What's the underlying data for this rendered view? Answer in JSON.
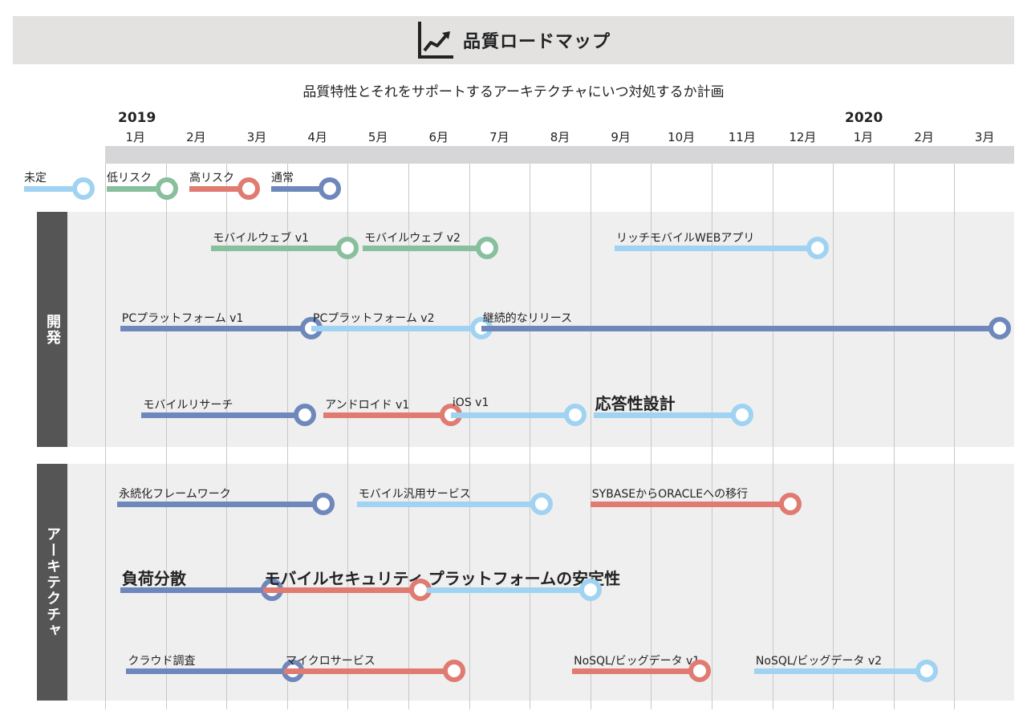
{
  "header": {
    "title": "品質ロードマップ",
    "subtitle": "品質特性とそれをサポートするアーキテクチャにいつ対処するか計画",
    "year_start": "2019",
    "year_end": "2020",
    "months": [
      "1月",
      "2月",
      "3月",
      "4月",
      "5月",
      "6月",
      "7月",
      "8月",
      "9月",
      "10月",
      "11月",
      "12月",
      "1月",
      "2月",
      "3月"
    ]
  },
  "colors": {
    "undecided": "#9fd3f1",
    "low_risk": "#88bf9d",
    "high_risk": "#e07b72",
    "normal": "#6f88bb"
  },
  "legend": [
    {
      "label": "未定",
      "status": "undecided"
    },
    {
      "label": "低リスク",
      "status": "low_risk"
    },
    {
      "label": "高リスク",
      "status": "high_risk"
    },
    {
      "label": "通常",
      "status": "normal"
    }
  ],
  "sections": [
    {
      "label": "開発"
    },
    {
      "label": "アーキテクチャ"
    }
  ],
  "items": [
    {
      "label": "モバイルウェブ v1",
      "status": "low_risk",
      "start": 2.75,
      "end": 5.0
    },
    {
      "label": "モバイルウェブ v2",
      "status": "low_risk",
      "start": 5.25,
      "end": 7.3
    },
    {
      "label": "リッチモバイルWEBアプリ",
      "status": "undecided",
      "start": 9.4,
      "end": 12.75
    },
    {
      "label": "PCプラットフォーム v1",
      "status": "normal",
      "start": 1.25,
      "end": 4.4
    },
    {
      "label": "PCプラットフォーム v2",
      "status": "undecided",
      "start": 4.4,
      "end": 7.2
    },
    {
      "label": "継続的なリリース",
      "status": "normal",
      "start": 7.2,
      "end": 15.75
    },
    {
      "label": "モバイルリサーチ",
      "status": "normal",
      "start": 1.6,
      "end": 4.3
    },
    {
      "label": "アンドロイド v1",
      "status": "high_risk",
      "start": 4.6,
      "end": 6.7
    },
    {
      "label": "iOS v1",
      "status": "undecided",
      "start": 6.7,
      "end": 8.75
    },
    {
      "label": "応答性設計",
      "status": "undecided",
      "start": 9.05,
      "end": 11.5,
      "big": true
    },
    {
      "label": "永続化フレームワーク",
      "status": "normal",
      "start": 1.2,
      "end": 4.6
    },
    {
      "label": "モバイル汎用サービス",
      "status": "undecided",
      "start": 5.15,
      "end": 8.2
    },
    {
      "label": "SYBASEからORACLEへの移行",
      "status": "high_risk",
      "start": 9.0,
      "end": 12.3
    },
    {
      "label": "負荷分散",
      "status": "normal",
      "start": 1.25,
      "end": 3.75,
      "big": true
    },
    {
      "label": "モバイルセキュリティ",
      "status": "high_risk",
      "start": 3.6,
      "end": 6.2,
      "big": true
    },
    {
      "label": "プラットフォームの安定性",
      "status": "undecided",
      "start": 6.3,
      "end": 9.0,
      "big": true
    },
    {
      "label": "クラウド調査",
      "status": "normal",
      "start": 1.35,
      "end": 4.1
    },
    {
      "label": "マイクロサービス",
      "status": "high_risk",
      "start": 3.95,
      "end": 6.75
    },
    {
      "label": "NoSQL/ビッグデータ v1",
      "status": "high_risk",
      "start": 8.7,
      "end": 10.8
    },
    {
      "label": "NoSQL/ビッグデータ v2",
      "status": "undecided",
      "start": 11.7,
      "end": 14.55
    }
  ]
}
